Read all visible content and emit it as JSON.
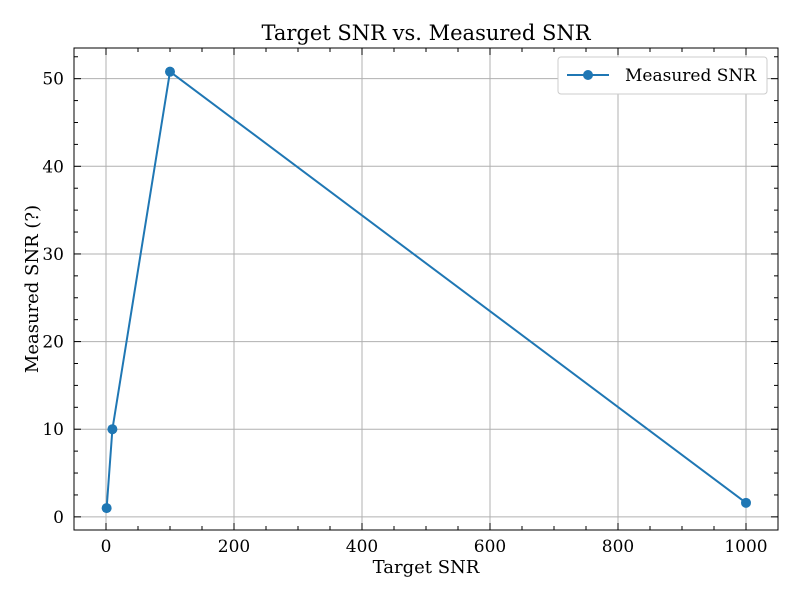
{
  "chart_data": {
    "type": "line",
    "title": "Target SNR vs. Measured SNR",
    "xlabel": "Target SNR",
    "ylabel": "Measured SNR (?)",
    "xlim": [
      -50,
      1050
    ],
    "ylim": [
      -1.5,
      53.5
    ],
    "x_ticks": [
      0,
      200,
      400,
      600,
      800,
      1000
    ],
    "x_minor_ticks": [
      50,
      100,
      150,
      250,
      300,
      350,
      450,
      500,
      550,
      650,
      700,
      750,
      850,
      900,
      950
    ],
    "y_ticks": [
      0,
      10,
      20,
      30,
      40,
      50
    ],
    "y_minor_ticks": [
      2.5,
      5,
      7.5,
      12.5,
      15,
      17.5,
      22.5,
      25,
      27.5,
      32.5,
      35,
      37.5,
      42.5,
      45,
      47.5,
      52.5
    ],
    "grid": true,
    "legend_position": "top-right",
    "series": [
      {
        "name": "Measured SNR",
        "color": "#1f77b4",
        "marker": "circle",
        "x": [
          1,
          10,
          100,
          1000
        ],
        "y": [
          1.0,
          10.0,
          50.8,
          1.6
        ]
      }
    ]
  }
}
